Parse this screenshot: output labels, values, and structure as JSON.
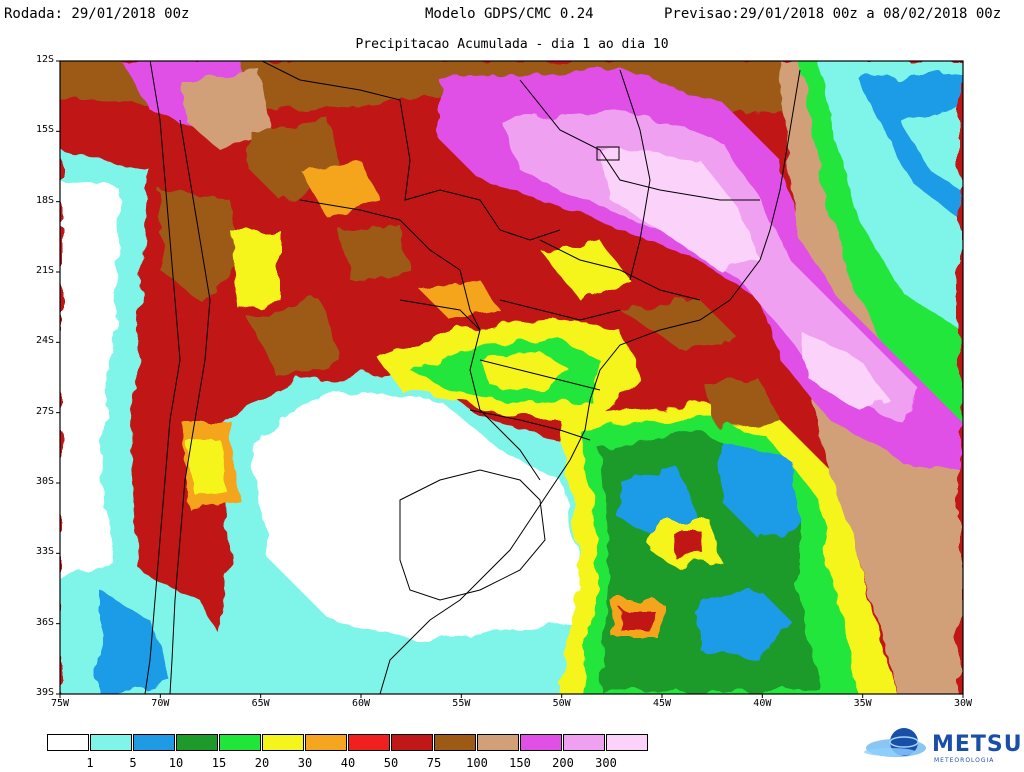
{
  "header": {
    "rodada": "Rodada: 29/01/2018 00z",
    "modelo": "Modelo GDPS/CMC 0.24",
    "previsao": "Previsao:29/01/2018 00z a 08/02/2018 00z",
    "subtitle": "Precipitacao Acumulada - dia 1 ao dia 10"
  },
  "axes": {
    "lat_labels": [
      "12S",
      "15S",
      "18S",
      "21S",
      "24S",
      "27S",
      "30S",
      "33S",
      "36S",
      "39S"
    ],
    "lon_labels": [
      "75W",
      "70W",
      "65W",
      "60W",
      "55W",
      "50W",
      "45W",
      "40W",
      "35W",
      "30W"
    ]
  },
  "legend": {
    "labels": [
      "1",
      "5",
      "10",
      "15",
      "20",
      "30",
      "40",
      "50",
      "75",
      "100",
      "150",
      "200",
      "300"
    ],
    "colors": [
      "#ffffff",
      "#7ff5ea",
      "#1f9be6",
      "#1e9a2b",
      "#20e63a",
      "#f5f51e",
      "#f5a51e",
      "#f02020",
      "#c01818",
      "#9c5a14",
      "#d2a078",
      "#e050e6",
      "#f0a0f0",
      "#fad2fa"
    ]
  },
  "logo": {
    "name": "METSUL",
    "tagline": "METEOROLOGIA"
  }
}
